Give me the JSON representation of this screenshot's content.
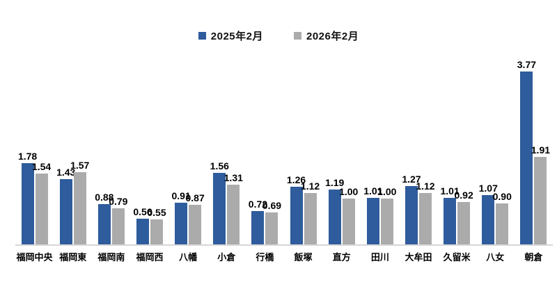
{
  "page": {
    "background_color": "#FFFFFF",
    "text_color": "#000000"
  },
  "legend": {
    "position": "top-center",
    "items": [
      {
        "label": "2025年2月",
        "color": "#2E5C9C"
      },
      {
        "label": "2026年2月",
        "color": "#ABABAB"
      }
    ]
  },
  "chart_data": {
    "type": "bar",
    "title": "",
    "xlabel": "",
    "ylabel": "",
    "ylim": [
      0,
      4
    ],
    "grid": false,
    "legend_position": "top-center",
    "value_labels": "outside-end, 2 decimals",
    "axis_line_color": "#D6D6D6",
    "categories": [
      "福岡中央",
      "福岡東",
      "福岡南",
      "福岡西",
      "八幡",
      "小倉",
      "行橋",
      "飯塚",
      "直方",
      "田川",
      "大牟田",
      "久留米",
      "八女",
      "朝倉"
    ],
    "series": [
      {
        "name": "2025年2月",
        "color": "#2E5C9C",
        "values": [
          1.78,
          1.43,
          0.88,
          0.56,
          0.91,
          1.56,
          0.72,
          1.26,
          1.19,
          1.01,
          1.27,
          1.01,
          1.07,
          3.77
        ],
        "labels": [
          "1.78",
          "1.43",
          "0.88",
          "0.56",
          "0.91",
          "1.56",
          "0.72",
          "1.26",
          "1.19",
          "1.01",
          "1.27",
          "1.01",
          "1.07",
          "3.77"
        ]
      },
      {
        "name": "2026年2月",
        "color": "#ABABAB",
        "values": [
          1.54,
          1.57,
          0.79,
          0.55,
          0.87,
          1.31,
          0.69,
          1.12,
          1.0,
          1.0,
          1.12,
          0.92,
          0.9,
          1.91
        ],
        "labels": [
          "1.54",
          "1.57",
          "0.79",
          "0.55",
          "0.87",
          "1.31",
          "0.69",
          "1.12",
          "1.00",
          "1.00",
          "1.12",
          "0.92",
          "0.90",
          "1.91"
        ]
      }
    ]
  }
}
